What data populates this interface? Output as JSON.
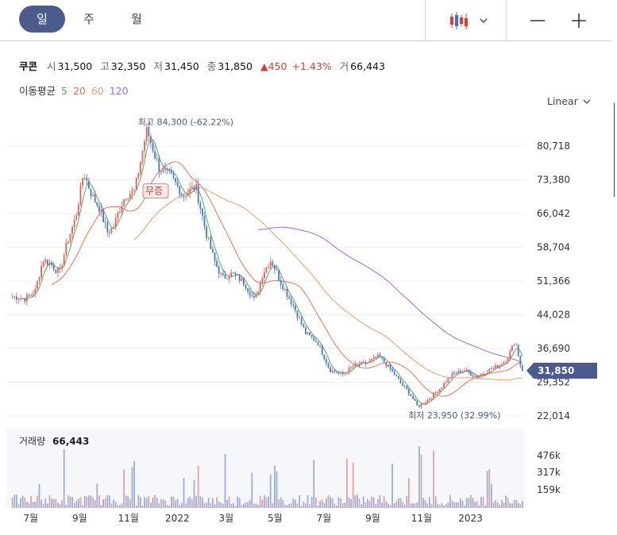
{
  "tabs": [
    {
      "label": "일",
      "active": true
    },
    {
      "label": "주",
      "active": false
    },
    {
      "label": "월",
      "active": false
    }
  ],
  "toolbar": {
    "chart_type_icon": "candlestick-icon",
    "zoom_out_icon": "minus-icon",
    "zoom_in_icon": "plus-icon"
  },
  "stock": {
    "name": "쿠콘",
    "open_label": "시",
    "open": "31,500",
    "high_label": "고",
    "high": "32,350",
    "low_label": "저",
    "low": "31,450",
    "close_label": "종",
    "close": "31,850",
    "change": "▲450",
    "change_pct": "+1.43%",
    "volume_label": "거",
    "volume": "66,443"
  },
  "moving_average": {
    "label": "이동평균",
    "periods": [
      "5",
      "20",
      "60",
      "120"
    ]
  },
  "scale": {
    "label": "Linear"
  },
  "colors": {
    "up": "#e0605a",
    "down": "#4a78c8",
    "ma5": "#5aa85a",
    "ma20": "#e07a55",
    "ma60": "#e8a070",
    "ma120": "#9b6ae0",
    "accent": "#4a5b8c",
    "volume": "#9ab0d8"
  },
  "chart_data": {
    "type": "candlestick",
    "y_ticks": [
      "80,718",
      "73,380",
      "66,042",
      "58,704",
      "51,366",
      "44,028",
      "36,690",
      "29,352",
      "22,014"
    ],
    "ylim": [
      22014,
      80718
    ],
    "x_ticks": [
      "7월",
      "9월",
      "11월",
      "2022",
      "3월",
      "5월",
      "7월",
      "9월",
      "11월",
      "2023"
    ],
    "current_price_label": "31,850",
    "high_annotation": "최고 84,300 (-62.22%)",
    "low_annotation": "최저 23,950 (32.99%)",
    "event_label": "무증",
    "volume_title": "거래량",
    "volume_value": "66,443",
    "volume_ticks": [
      "476k",
      "317k",
      "159k"
    ],
    "price_path": [
      [
        "2021-06",
        48000
      ],
      [
        "2021-06",
        47500
      ],
      [
        "2021-07",
        49000
      ],
      [
        "2021-07",
        56000
      ],
      [
        "2021-07",
        55000
      ],
      [
        "2021-08",
        53000
      ],
      [
        "2021-08",
        60000
      ],
      [
        "2021-08",
        65000
      ],
      [
        "2021-09",
        75000
      ],
      [
        "2021-09",
        70000
      ],
      [
        "2021-09",
        67000
      ],
      [
        "2021-10",
        62000
      ],
      [
        "2021-10",
        63000
      ],
      [
        "2021-10",
        67000
      ],
      [
        "2021-10",
        70000
      ],
      [
        "2021-11",
        71000
      ],
      [
        "2021-11",
        84300
      ],
      [
        "2021-12",
        76000
      ],
      [
        "2021-12",
        74000
      ],
      [
        "2022-01",
        70000
      ],
      [
        "2022-01",
        72000
      ],
      [
        "2022-02",
        62000
      ],
      [
        "2022-02",
        56000
      ],
      [
        "2022-02",
        52000
      ],
      [
        "2022-03",
        53000
      ],
      [
        "2022-03",
        51000
      ],
      [
        "2022-04",
        47000
      ],
      [
        "2022-04",
        53000
      ],
      [
        "2022-04",
        56000
      ],
      [
        "2022-05",
        51000
      ],
      [
        "2022-05",
        46000
      ],
      [
        "2022-06",
        40000
      ],
      [
        "2022-06",
        38000
      ],
      [
        "2022-07",
        32000
      ],
      [
        "2022-07",
        31000
      ],
      [
        "2022-08",
        33000
      ],
      [
        "2022-08",
        33500
      ],
      [
        "2022-09",
        35000
      ],
      [
        "2022-09",
        32000
      ],
      [
        "2022-10",
        29000
      ],
      [
        "2022-10",
        27000
      ],
      [
        "2022-10",
        24000
      ],
      [
        "2022-11",
        25500
      ],
      [
        "2022-11",
        28000
      ],
      [
        "2022-12",
        31000
      ],
      [
        "2022-12",
        32000
      ],
      [
        "2023-01",
        30500
      ],
      [
        "2023-01",
        32000
      ],
      [
        "2023-02",
        33000
      ],
      [
        "2023-02",
        34500
      ],
      [
        "2023-02",
        38500
      ],
      [
        "2023-03",
        33000
      ],
      [
        "2023-03",
        31850
      ]
    ]
  }
}
